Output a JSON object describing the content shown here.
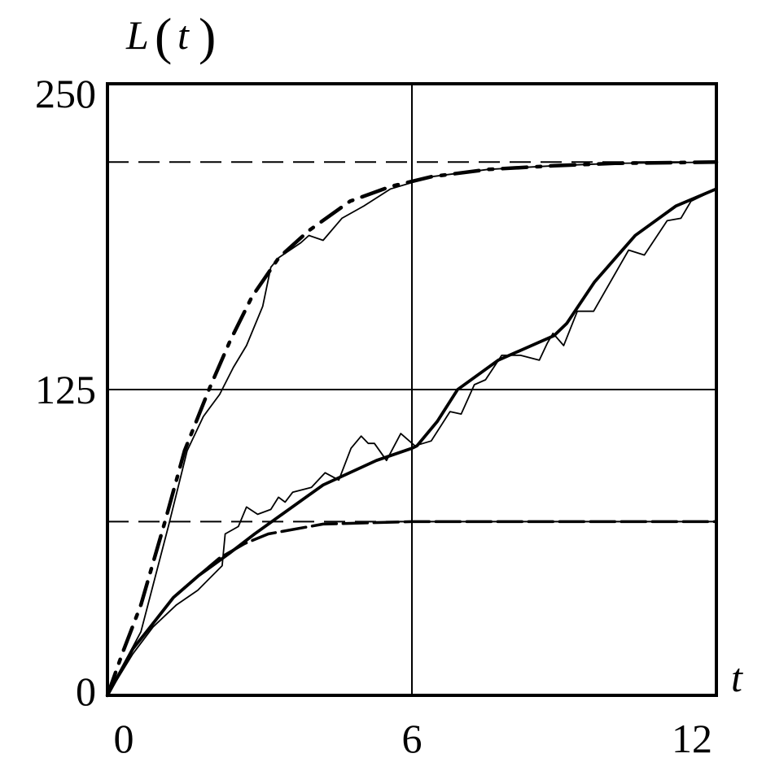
{
  "chart_data": {
    "type": "line",
    "title": "",
    "ylabel": "L(t)",
    "ylabel_parts": {
      "name": "L",
      "open": "(",
      "var": "t",
      "close": ")"
    },
    "xlabel": "t",
    "xlim": [
      0,
      12
    ],
    "ylim": [
      0,
      250
    ],
    "x_ticks": [
      "0",
      "6",
      "12"
    ],
    "x_tick_values": [
      0,
      6,
      12
    ],
    "y_ticks": [
      "250",
      "125",
      "0"
    ],
    "y_tick_values": [
      250,
      125,
      0
    ],
    "grid": {
      "x": [
        6
      ],
      "y": [
        125
      ]
    },
    "reference_lines": [
      {
        "style": "dashed",
        "y": 218
      },
      {
        "style": "dashed",
        "y": 71
      }
    ],
    "legend": "none",
    "colors": {
      "lines": "#000000",
      "background": "#ffffff"
    },
    "series": [
      {
        "style": "dash-dot-thick",
        "points": [
          [
            0,
            0
          ],
          [
            0.29,
            17
          ],
          [
            0.66,
            37
          ],
          [
            1.12,
            70
          ],
          [
            1.52,
            100
          ],
          [
            2.0,
            125
          ],
          [
            2.42,
            145
          ],
          [
            2.85,
            163
          ],
          [
            3.38,
            179
          ],
          [
            3.97,
            190
          ],
          [
            4.78,
            202
          ],
          [
            5.58,
            208
          ],
          [
            6.38,
            212
          ],
          [
            7.5,
            215
          ],
          [
            8.8,
            216.5
          ],
          [
            10,
            217.5
          ],
          [
            12,
            218
          ]
        ]
      },
      {
        "style": "thin-noisy",
        "points": [
          [
            0,
            0
          ],
          [
            0.3,
            12
          ],
          [
            0.66,
            26
          ],
          [
            1.2,
            69
          ],
          [
            1.57,
            100
          ],
          [
            1.89,
            114
          ],
          [
            2.21,
            123
          ],
          [
            2.48,
            134
          ],
          [
            2.74,
            143
          ],
          [
            3.06,
            159
          ],
          [
            3.22,
            175
          ],
          [
            3.38,
            179
          ],
          [
            3.81,
            185
          ],
          [
            3.97,
            188
          ],
          [
            4.25,
            186
          ],
          [
            4.62,
            195
          ],
          [
            5.05,
            200
          ],
          [
            5.58,
            207
          ],
          [
            6.38,
            212
          ],
          [
            7.5,
            215
          ],
          [
            8.8,
            216.5
          ],
          [
            10,
            217.5
          ],
          [
            12,
            218
          ]
        ]
      },
      {
        "style": "dashed-thick",
        "points": [
          [
            0,
            0
          ],
          [
            0.5,
            19
          ],
          [
            0.77,
            26
          ],
          [
            1.3,
            40
          ],
          [
            1.8,
            49
          ],
          [
            2.2,
            56
          ],
          [
            2.7,
            62
          ],
          [
            3.17,
            66
          ],
          [
            4.25,
            70
          ],
          [
            6,
            71
          ],
          [
            9,
            71
          ],
          [
            12,
            71
          ]
        ]
      },
      {
        "style": "solid-thick",
        "points": [
          [
            0,
            0
          ],
          [
            0.5,
            19
          ],
          [
            0.77,
            26
          ],
          [
            1.3,
            40
          ],
          [
            1.8,
            49
          ],
          [
            2.4,
            58
          ],
          [
            2.9,
            66
          ],
          [
            3.44,
            74
          ],
          [
            4.25,
            86
          ],
          [
            5.3,
            96
          ],
          [
            6,
            101
          ],
          [
            6.1,
            102
          ],
          [
            6.5,
            112
          ],
          [
            6.9,
            125
          ],
          [
            7.7,
            137
          ],
          [
            8.8,
            147
          ],
          [
            9.05,
            152
          ],
          [
            9.6,
            169
          ],
          [
            10.4,
            188
          ],
          [
            11.2,
            200
          ],
          [
            12,
            207
          ]
        ]
      },
      {
        "style": "thin-noisy",
        "points": [
          [
            0,
            0
          ],
          [
            0.5,
            17
          ],
          [
            0.9,
            28
          ],
          [
            1.36,
            37
          ],
          [
            1.78,
            43
          ],
          [
            2.26,
            53
          ],
          [
            2.32,
            66
          ],
          [
            2.58,
            69
          ],
          [
            2.74,
            77
          ],
          [
            2.96,
            74
          ],
          [
            3.22,
            76
          ],
          [
            3.37,
            81
          ],
          [
            3.5,
            79
          ],
          [
            3.65,
            83
          ],
          [
            4.02,
            85
          ],
          [
            4.29,
            91
          ],
          [
            4.56,
            88
          ],
          [
            4.8,
            101
          ],
          [
            5.0,
            106
          ],
          [
            5.14,
            103
          ],
          [
            5.26,
            103
          ],
          [
            5.5,
            96
          ],
          [
            5.78,
            107
          ],
          [
            6.06,
            102
          ],
          [
            6.38,
            104
          ],
          [
            6.75,
            116
          ],
          [
            6.97,
            115
          ],
          [
            7.23,
            127
          ],
          [
            7.45,
            129
          ],
          [
            7.77,
            139
          ],
          [
            8.14,
            139
          ],
          [
            8.51,
            137
          ],
          [
            8.67,
            144
          ],
          [
            8.78,
            148
          ],
          [
            8.99,
            143
          ],
          [
            9.26,
            157
          ],
          [
            9.58,
            157
          ],
          [
            10.27,
            182
          ],
          [
            10.58,
            180
          ],
          [
            11.03,
            194
          ],
          [
            11.3,
            195
          ],
          [
            11.5,
            202
          ],
          [
            12,
            207
          ]
        ]
      }
    ]
  }
}
